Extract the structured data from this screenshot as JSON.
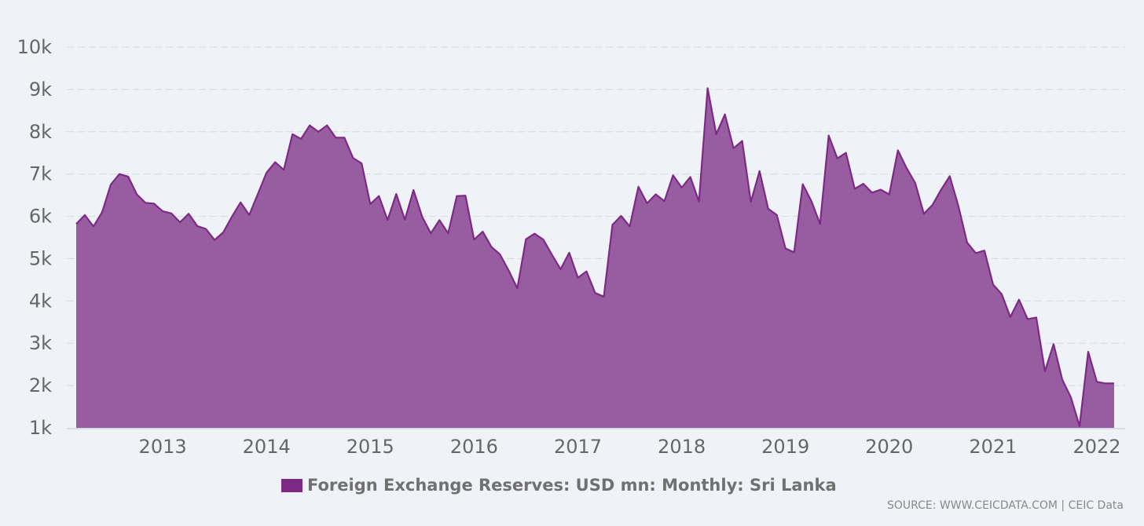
{
  "chart_data": {
    "type": "area",
    "ylim": [
      1000,
      10000
    ],
    "yticks": [
      1000,
      2000,
      3000,
      4000,
      5000,
      6000,
      7000,
      8000,
      9000,
      10000
    ],
    "ytick_labels": [
      "1k",
      "2k",
      "3k",
      "4k",
      "5k",
      "6k",
      "7k",
      "8k",
      "9k",
      "10k"
    ],
    "xtick_labels": [
      "2013",
      "2014",
      "2015",
      "2016",
      "2017",
      "2018",
      "2019",
      "2020",
      "2021",
      "2022"
    ],
    "grid": true,
    "legend_position": "bottom",
    "x_start": "2012-03",
    "x_end": "2022-03",
    "series": [
      {
        "name": "Foreign Exchange Reserves: USD mn: Monthly: Sri Lanka",
        "color": "#7d2a86",
        "fill_color": "#985da1",
        "x": [
          "2012-03",
          "2012-04",
          "2012-05",
          "2012-06",
          "2012-07",
          "2012-08",
          "2012-09",
          "2012-10",
          "2012-11",
          "2012-12",
          "2013-01",
          "2013-02",
          "2013-03",
          "2013-04",
          "2013-05",
          "2013-06",
          "2013-07",
          "2013-08",
          "2013-09",
          "2013-10",
          "2013-11",
          "2013-12",
          "2014-01",
          "2014-02",
          "2014-03",
          "2014-04",
          "2014-05",
          "2014-06",
          "2014-07",
          "2014-08",
          "2014-09",
          "2014-10",
          "2014-11",
          "2014-12",
          "2015-01",
          "2015-02",
          "2015-03",
          "2015-04",
          "2015-05",
          "2015-06",
          "2015-07",
          "2015-08",
          "2015-09",
          "2015-10",
          "2015-11",
          "2015-12",
          "2016-01",
          "2016-02",
          "2016-03",
          "2016-04",
          "2016-05",
          "2016-06",
          "2016-07",
          "2016-08",
          "2016-09",
          "2016-10",
          "2016-11",
          "2016-12",
          "2017-01",
          "2017-02",
          "2017-03",
          "2017-04",
          "2017-05",
          "2017-06",
          "2017-07",
          "2017-08",
          "2017-09",
          "2017-10",
          "2017-11",
          "2017-12",
          "2018-01",
          "2018-02",
          "2018-03",
          "2018-04",
          "2018-05",
          "2018-06",
          "2018-07",
          "2018-08",
          "2018-09",
          "2018-10",
          "2018-11",
          "2018-12",
          "2019-01",
          "2019-02",
          "2019-03",
          "2019-04",
          "2019-05",
          "2019-06",
          "2019-07",
          "2019-08",
          "2019-09",
          "2019-10",
          "2019-11",
          "2019-12",
          "2020-01",
          "2020-02",
          "2020-03",
          "2020-04",
          "2020-05",
          "2020-06",
          "2020-07",
          "2020-08",
          "2020-09",
          "2020-10",
          "2020-11",
          "2020-12",
          "2021-01",
          "2021-02",
          "2021-03",
          "2021-04",
          "2021-05",
          "2021-06",
          "2021-07",
          "2021-08",
          "2021-09",
          "2021-10",
          "2021-11",
          "2021-12",
          "2022-01",
          "2022-02",
          "2022-03"
        ],
        "y": [
          5820,
          6030,
          5760,
          6100,
          6750,
          7000,
          6940,
          6520,
          6320,
          6300,
          6120,
          6070,
          5860,
          6060,
          5770,
          5700,
          5440,
          5620,
          5990,
          6330,
          6030,
          6530,
          7030,
          7280,
          7100,
          7940,
          7830,
          8150,
          8000,
          8150,
          7860,
          7860,
          7380,
          7250,
          6290,
          6480,
          5910,
          6530,
          5920,
          6620,
          5990,
          5600,
          5910,
          5600,
          6480,
          6490,
          5450,
          5640,
          5280,
          5100,
          4720,
          4300,
          5460,
          5590,
          5450,
          5090,
          4750,
          5140,
          4550,
          4700,
          4190,
          4100,
          5800,
          6010,
          5760,
          6700,
          6310,
          6520,
          6360,
          6970,
          6680,
          6930,
          6350,
          9030,
          7940,
          8410,
          7610,
          7780,
          6340,
          7070,
          6180,
          6030,
          5240,
          5150,
          6760,
          6360,
          5820,
          7910,
          7370,
          7500,
          6650,
          6770,
          6560,
          6630,
          6520,
          7560,
          7140,
          6790,
          6060,
          6270,
          6630,
          6950,
          6240,
          5380,
          5130,
          5190,
          4390,
          4160,
          3620,
          4030,
          3570,
          3610,
          2340,
          2980,
          2140,
          1720,
          1040,
          2800,
          2090,
          2050,
          2050
        ]
      }
    ]
  },
  "legend": {
    "label": "Foreign Exchange Reserves: USD mn: Monthly: Sri Lanka"
  },
  "footer": {
    "source": "SOURCE: WWW.CEICDATA.COM | CEIC Data"
  }
}
